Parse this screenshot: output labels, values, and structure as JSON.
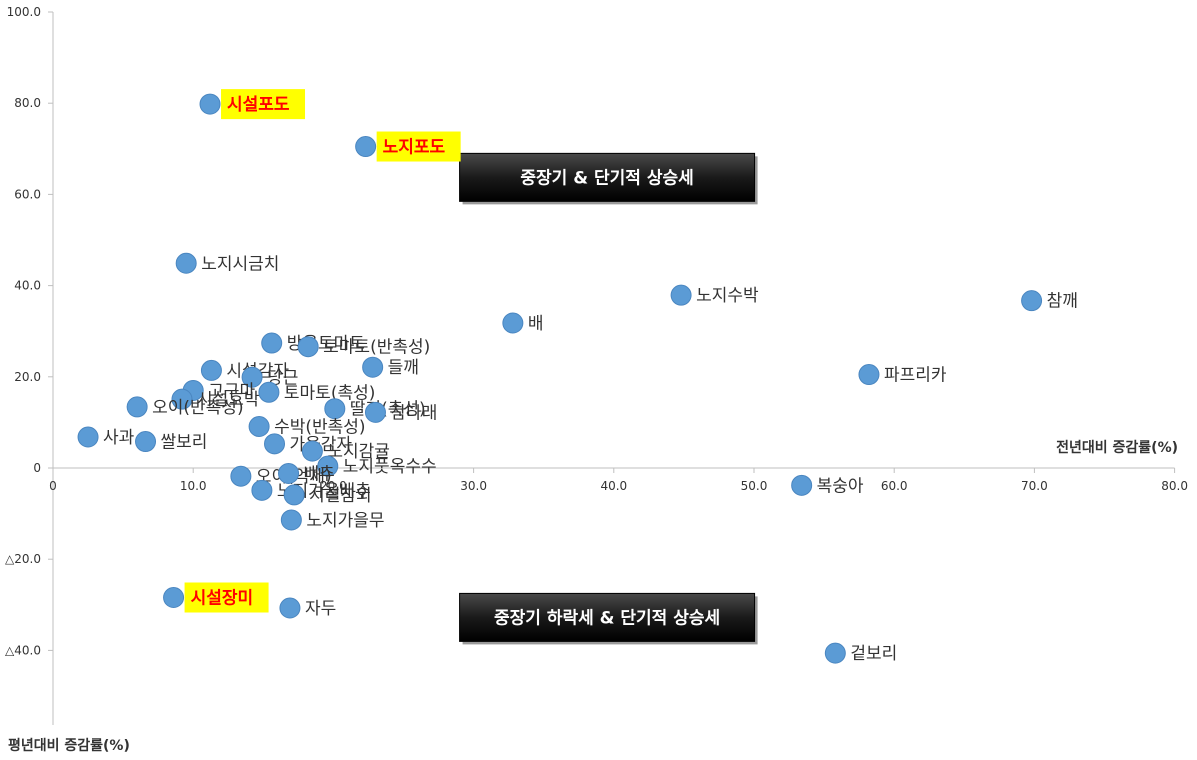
{
  "chart_data": {
    "type": "scatter",
    "xlabel": "전년대비 증감률(%)",
    "ylabel": "평년대비 증감률(%)",
    "xlim": [
      0,
      80
    ],
    "ylim": [
      -50,
      100
    ],
    "x_ticks": [
      {
        "value": 0,
        "label": "0"
      },
      {
        "value": 10,
        "label": "10.0"
      },
      {
        "value": 20,
        "label": "20.0"
      },
      {
        "value": 30,
        "label": "30.0"
      },
      {
        "value": 40,
        "label": "40.0"
      },
      {
        "value": 50,
        "label": "50.0"
      },
      {
        "value": 60,
        "label": "60.0"
      },
      {
        "value": 70,
        "label": "70.0"
      },
      {
        "value": 80,
        "label": "80.0"
      }
    ],
    "y_ticks": [
      {
        "value": 100,
        "label": "100.0"
      },
      {
        "value": 80,
        "label": "80.0"
      },
      {
        "value": 60,
        "label": "60.0"
      },
      {
        "value": 40,
        "label": "40.0"
      },
      {
        "value": 20,
        "label": "20.0"
      },
      {
        "value": 0,
        "label": "0"
      },
      {
        "value": -20,
        "label": "△20.0"
      },
      {
        "value": -40,
        "label": "△40.0"
      }
    ],
    "marker_color": "#5b9bd5",
    "highlight_color": "#ffff00",
    "points": [
      {
        "label": "시설포도",
        "x": 11.2,
        "y": 79.8,
        "highlight": true
      },
      {
        "label": "노지포도",
        "x": 22.3,
        "y": 70.5,
        "highlight": true
      },
      {
        "label": "노지시금치",
        "x": 9.5,
        "y": 44.9
      },
      {
        "label": "노지수박",
        "x": 44.8,
        "y": 37.9
      },
      {
        "label": "참깨",
        "x": 69.8,
        "y": 36.7
      },
      {
        "label": "배",
        "x": 32.8,
        "y": 31.8
      },
      {
        "label": "방울토마토",
        "x": 15.6,
        "y": 27.4
      },
      {
        "label": "토마토(반촉성)",
        "x": 18.2,
        "y": 26.6
      },
      {
        "label": "들깨",
        "x": 22.8,
        "y": 22.1
      },
      {
        "label": "파프리카",
        "x": 58.2,
        "y": 20.5
      },
      {
        "label": "시설감자",
        "x": 11.3,
        "y": 21.4
      },
      {
        "label": "당근",
        "x": 14.2,
        "y": 19.9
      },
      {
        "label": "고구마",
        "x": 10.0,
        "y": 17.0
      },
      {
        "label": "토마토(촉성)",
        "x": 15.4,
        "y": 16.6
      },
      {
        "label": "시설호박",
        "x": 9.2,
        "y": 15.1
      },
      {
        "label": "오이(반촉성)",
        "x": 6.0,
        "y": 13.4
      },
      {
        "label": "딸기(촉성)",
        "x": 20.1,
        "y": 13.0
      },
      {
        "label": "참다래",
        "x": 23.0,
        "y": 12.2
      },
      {
        "label": "수박(반촉성)",
        "x": 14.7,
        "y": 9.1
      },
      {
        "label": "사과",
        "x": 2.5,
        "y": 6.8
      },
      {
        "label": "쌀보리",
        "x": 6.6,
        "y": 5.8
      },
      {
        "label": "가을감자",
        "x": 15.8,
        "y": 5.3
      },
      {
        "label": "노지감귤",
        "x": 18.5,
        "y": 3.7
      },
      {
        "label": "노지풋옥수수",
        "x": 19.6,
        "y": 0.4
      },
      {
        "label": "오이(억제)",
        "x": 13.4,
        "y": -1.8
      },
      {
        "label": "배추",
        "x": 16.8,
        "y": -1.2
      },
      {
        "label": "노지겨울배추",
        "x": 14.9,
        "y": -4.9
      },
      {
        "label": "시설참외",
        "x": 17.2,
        "y": -5.9
      },
      {
        "label": "복숭아",
        "x": 53.4,
        "y": -3.8
      },
      {
        "label": "노지가을무",
        "x": 17.0,
        "y": -11.4
      },
      {
        "label": "시설장미",
        "x": 8.6,
        "y": -28.4,
        "highlight": true
      },
      {
        "label": "자두",
        "x": 16.9,
        "y": -30.7
      },
      {
        "label": "겉보리",
        "x": 55.8,
        "y": -40.6
      }
    ],
    "annotations": [
      {
        "text": "중장기 & 단기적 상승세",
        "anchor_x": 29.0,
        "anchor_y": 69.0
      },
      {
        "text": "중장기 하락세 & 단기적 상승세",
        "anchor_x": 29.0,
        "anchor_y": -27.5
      }
    ]
  }
}
